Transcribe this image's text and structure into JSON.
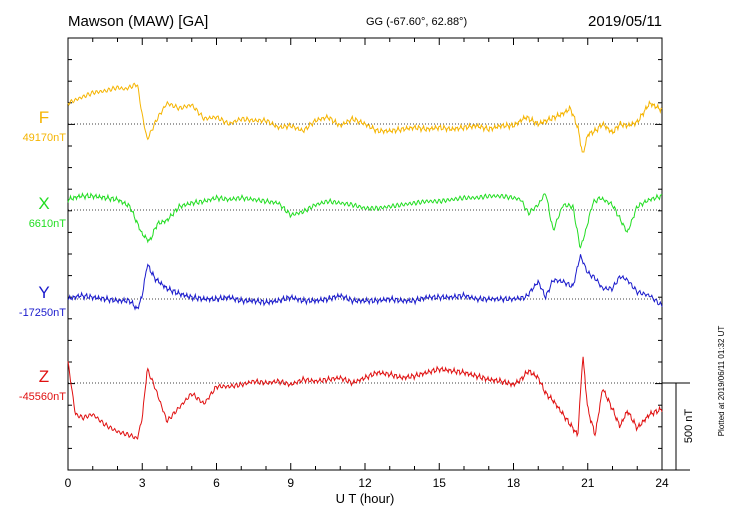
{
  "header": {
    "station": "Mawson (MAW)  [GA]",
    "coords": "GG (-67.60°,  62.88°)",
    "date": "2019/05/11"
  },
  "side_note": "Plotted at 2019/06/11 01:32 UT",
  "scale_label": "500 nT",
  "colors": {
    "F": "#f5b400",
    "X": "#22dd22",
    "Y": "#1a1acc",
    "Z": "#e01010"
  },
  "chart_data": {
    "type": "line",
    "xlabel": "U T (hour)",
    "xlim": [
      0,
      24
    ],
    "xticks": [
      "0",
      "3",
      "6",
      "9",
      "12",
      "15",
      "18",
      "21",
      "24"
    ],
    "scale_nT": 500,
    "series": [
      {
        "name": "F",
        "baseline_label": "49170nT",
        "x": [
          0,
          0.5,
          1,
          1.5,
          2,
          2.3,
          2.8,
          3.0,
          3.2,
          3.6,
          4,
          4.5,
          5,
          5.5,
          6,
          6.5,
          7,
          7.5,
          8,
          8.5,
          9,
          9.5,
          10,
          10.5,
          11,
          11.5,
          12,
          12.5,
          13,
          13.5,
          14,
          14.5,
          15,
          15.5,
          16,
          16.5,
          17,
          17.5,
          18,
          18.5,
          19,
          19.5,
          20,
          20.3,
          20.6,
          20.8,
          21,
          21.3,
          21.6,
          22,
          22.3,
          22.6,
          23,
          23.5,
          24
        ],
        "values": [
          120,
          150,
          180,
          190,
          210,
          200,
          230,
          50,
          -90,
          30,
          120,
          90,
          110,
          30,
          40,
          0,
          30,
          20,
          20,
          -20,
          -10,
          -40,
          20,
          40,
          -10,
          30,
          0,
          -40,
          -40,
          -30,
          -20,
          -30,
          -20,
          -30,
          -20,
          -10,
          -30,
          -10,
          -10,
          40,
          0,
          30,
          60,
          90,
          -20,
          -180,
          -60,
          -40,
          0,
          -50,
          0,
          -10,
          10,
          120,
          80
        ]
      },
      {
        "name": "X",
        "baseline_label": "6610nT",
        "x": [
          0,
          0.5,
          1,
          1.5,
          2,
          2.5,
          3,
          3.3,
          3.6,
          4,
          4.5,
          5,
          5.5,
          6,
          6.5,
          7,
          7.5,
          8,
          8.5,
          9,
          9.5,
          10,
          10.5,
          11,
          11.5,
          12,
          12.5,
          13,
          13.5,
          14,
          14.5,
          15,
          15.5,
          16,
          16.5,
          17,
          17.5,
          18,
          18.3,
          18.6,
          19,
          19.3,
          19.6,
          20,
          20.4,
          20.7,
          20.9,
          21.2,
          21.5,
          22,
          22.3,
          22.6,
          23,
          23.5,
          24
        ],
        "values": [
          60,
          80,
          80,
          70,
          60,
          20,
          -140,
          -180,
          -80,
          -60,
          20,
          40,
          50,
          70,
          60,
          70,
          60,
          50,
          40,
          -30,
          -10,
          30,
          50,
          40,
          30,
          10,
          10,
          20,
          30,
          40,
          50,
          50,
          60,
          70,
          70,
          80,
          80,
          70,
          60,
          -20,
          30,
          100,
          -120,
          30,
          20,
          -220,
          -130,
          40,
          70,
          30,
          -50,
          -130,
          20,
          60,
          80
        ]
      },
      {
        "name": "Y",
        "baseline_label": "-17250nT",
        "x": [
          0,
          0.5,
          1,
          1.5,
          2,
          2.5,
          2.8,
          3.0,
          3.2,
          3.5,
          4,
          4.5,
          5,
          5.5,
          6,
          6.5,
          7,
          7.5,
          8,
          8.5,
          9,
          9.5,
          10,
          10.5,
          11,
          11.5,
          12,
          12.5,
          13,
          13.5,
          14,
          14.5,
          15,
          15.5,
          16,
          16.5,
          17,
          17.5,
          18,
          18.5,
          19,
          19.3,
          19.6,
          20,
          20.4,
          20.7,
          21,
          21.3,
          21.6,
          22,
          22.3,
          22.6,
          23,
          23.5,
          24
        ],
        "values": [
          0,
          20,
          10,
          0,
          -10,
          -10,
          -60,
          20,
          200,
          120,
          60,
          30,
          10,
          0,
          0,
          10,
          -10,
          -10,
          -20,
          -10,
          10,
          -10,
          -10,
          0,
          20,
          -10,
          -10,
          -10,
          0,
          -10,
          -10,
          10,
          10,
          10,
          20,
          0,
          0,
          0,
          0,
          10,
          100,
          10,
          110,
          100,
          70,
          250,
          150,
          120,
          60,
          60,
          130,
          110,
          40,
          20,
          -40
        ]
      },
      {
        "name": "Z",
        "baseline_label": "-45560nT",
        "x": [
          0,
          0.3,
          0.6,
          1,
          1.5,
          2,
          2.5,
          2.8,
          3.0,
          3.2,
          3.5,
          4,
          4.5,
          5,
          5.5,
          6,
          6.5,
          7,
          7.5,
          8,
          8.5,
          9,
          9.5,
          10,
          10.5,
          11,
          11.5,
          12,
          12.5,
          13,
          13.5,
          14,
          14.5,
          15,
          15.5,
          16,
          16.5,
          17,
          17.5,
          18,
          18.3,
          18.6,
          19,
          19.3,
          19.6,
          20,
          20.3,
          20.6,
          20.8,
          21,
          21.3,
          21.6,
          22,
          22.3,
          22.6,
          23,
          23.5,
          24
        ],
        "values": [
          120,
          -180,
          -200,
          -180,
          -240,
          -280,
          -300,
          -320,
          -200,
          80,
          -20,
          -220,
          -140,
          -60,
          -120,
          -20,
          -20,
          -10,
          10,
          0,
          10,
          -10,
          20,
          10,
          20,
          30,
          0,
          30,
          60,
          50,
          30,
          40,
          60,
          80,
          70,
          60,
          40,
          20,
          10,
          -10,
          20,
          70,
          30,
          -60,
          -100,
          -180,
          -240,
          -300,
          160,
          -150,
          -300,
          -30,
          -150,
          -250,
          -160,
          -260,
          -180,
          -150
        ]
      }
    ]
  }
}
